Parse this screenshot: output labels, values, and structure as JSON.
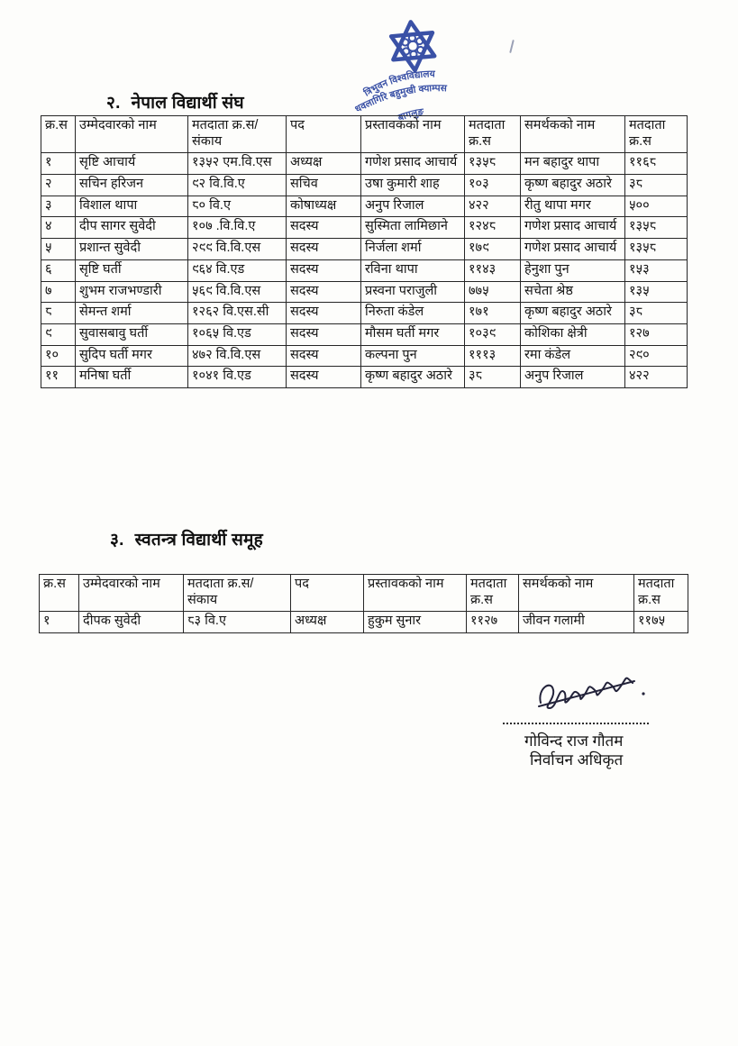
{
  "stamp": {
    "color": "#3a51a6",
    "university": "त्रिभुवन विश्वविद्यालय",
    "campus": "धवलागिरि बहुमुखी क्याम्पस",
    "place": "बागलुङ"
  },
  "section_nepal": {
    "heading_number": "२.",
    "heading_text": "नेपाल विद्यार्थी संघ",
    "table": {
      "headers": [
        "क्र.स",
        "उम्मेदवारको नाम",
        "मतदाता क्र.स/\nसंकाय",
        "पद",
        "प्रस्तावकको नाम",
        "मतदाता\nक्र.स",
        "समर्थकको नाम",
        "मतदाता\nक्र.स"
      ],
      "rows": [
        [
          "१",
          "सृष्टि आचार्य",
          "१३५२ एम.वि.एस",
          "अध्यक्ष",
          "गणेश प्रसाद आचार्य",
          "१३५८",
          "मन बहादुर थापा",
          "११६८"
        ],
        [
          "२",
          "सचिन हरिजन",
          "९२ वि.वि.ए",
          "सचिव",
          "उषा कुमारी शाह",
          "१०३",
          "कृष्ण बहादुर अठारे",
          "३८"
        ],
        [
          "३",
          "विशाल थापा",
          "८० वि.ए",
          "कोषाध्यक्ष",
          "अनुप रिजाल",
          "४२२",
          "रीतु थापा मगर",
          "५००"
        ],
        [
          "४",
          "दीप सागर सुवेदी",
          "१०७ .वि.वि.ए",
          "सदस्य",
          "सुस्मिता लामिछाने",
          "१२४८",
          "गणेश प्रसाद आचार्य",
          "१३५८"
        ],
        [
          "५",
          "प्रशान्त सुवेदी",
          "२९९ वि.वि.एस",
          "सदस्य",
          "निर्जला शर्मा",
          "१७९",
          "गणेश प्रसाद आचार्य",
          "१३५८"
        ],
        [
          "६",
          "सृष्टि घर्ती",
          "९६४ वि.एड",
          "सदस्य",
          "रविना थापा",
          "११४३",
          "हेनुशा पुन",
          "१५३"
        ],
        [
          "७",
          "शुभम राजभण्डारी",
          "५६९ वि.वि.एस",
          "सदस्य",
          "प्रस्वना पराजुली",
          "७७५",
          "सचेता श्रेष्ठ",
          "१३५"
        ],
        [
          "८",
          "सेमन्त शर्मा",
          "१२६२ वि.एस.सी",
          "सदस्य",
          "निरुता कंडेल",
          "१७१",
          "कृष्ण बहादुर अठारे",
          "३८"
        ],
        [
          "९",
          "सुवासबावु घर्ती",
          "१०६५ वि.एड",
          "सदस्य",
          "मौसम घर्ती मगर",
          "१०३९",
          "कोशिका क्षेत्री",
          "१२७"
        ],
        [
          "१०",
          "सुदिप घर्ती मगर",
          "४७२ वि.वि.एस",
          "सदस्य",
          "कल्पना पुन",
          "१११३",
          "रमा कंडेल",
          "२९०"
        ],
        [
          "११",
          "मनिषा घर्ती",
          "१०४१ वि.एड",
          "सदस्य",
          "कृष्ण बहादुर अठारे",
          "३८",
          "अनुप रिजाल",
          "४२२"
        ]
      ]
    }
  },
  "section_independent": {
    "heading_number": "३.",
    "heading_text": "स्वतन्त्र विद्यार्थी समूह",
    "table": {
      "headers": [
        "क्र.स",
        "उम्मेदवारको नाम",
        "मतदाता क्र.स/\nसंकाय",
        "पद",
        "प्रस्तावकको नाम",
        "मतदाता\nक्र.स",
        "समर्थकको नाम",
        "मतदाता\nक्र.स"
      ],
      "rows": [
        [
          "१",
          "दीपक सुवेदी",
          "८३ वि.ए",
          "अध्यक्ष",
          "हुकुम सुनार",
          "११२७",
          "जीवन गलामी",
          "११७५"
        ]
      ]
    }
  },
  "signature": {
    "name": "गोविन्द राज गौतम",
    "title": "निर्वाचन अधिकृत"
  }
}
